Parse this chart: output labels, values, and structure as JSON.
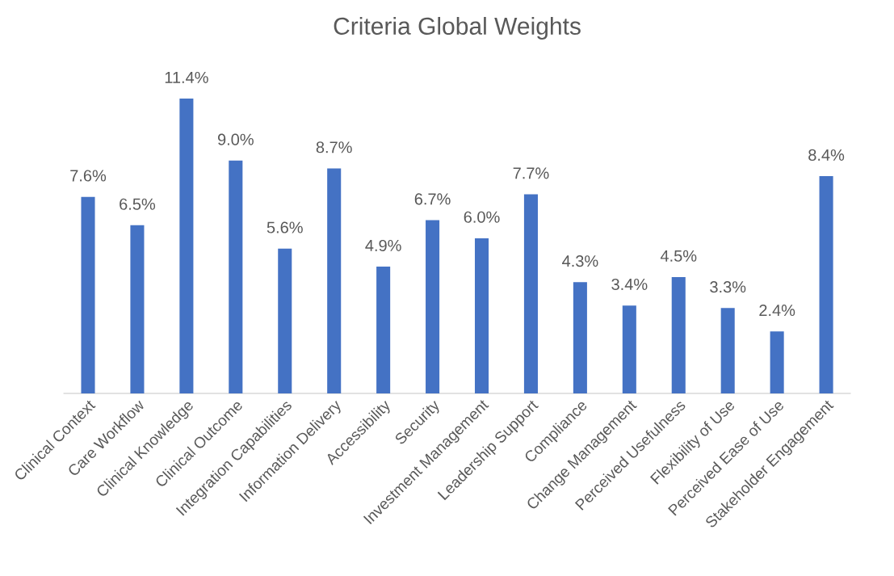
{
  "chart_data": {
    "type": "bar",
    "title": "Criteria Global Weights",
    "categories": [
      "Clinical Context",
      "Care Workflow",
      "Clinical Knowledge",
      "Clinical Outcome",
      "Integration Capabilities",
      "Information Delivery",
      "Accessibility",
      "Security",
      "Investment Management",
      "Leadership Support",
      "Compliance",
      "Change Management",
      "Perceived Usefulness",
      "Flexibility of Use",
      "Perceived Ease of Use",
      "Stakeholder Engagement"
    ],
    "values": [
      7.6,
      6.5,
      11.4,
      9.0,
      5.6,
      8.7,
      4.9,
      6.7,
      6.0,
      7.7,
      4.3,
      3.4,
      4.5,
      3.3,
      2.4,
      8.4
    ],
    "value_labels": [
      "7.6%",
      "6.5%",
      "11.4%",
      "9.0%",
      "5.6%",
      "8.7%",
      "4.9%",
      "6.7%",
      "6.0%",
      "7.7%",
      "4.3%",
      "3.4%",
      "4.5%",
      "3.3%",
      "2.4%",
      "8.4%"
    ],
    "color": "#4472c4"
  }
}
